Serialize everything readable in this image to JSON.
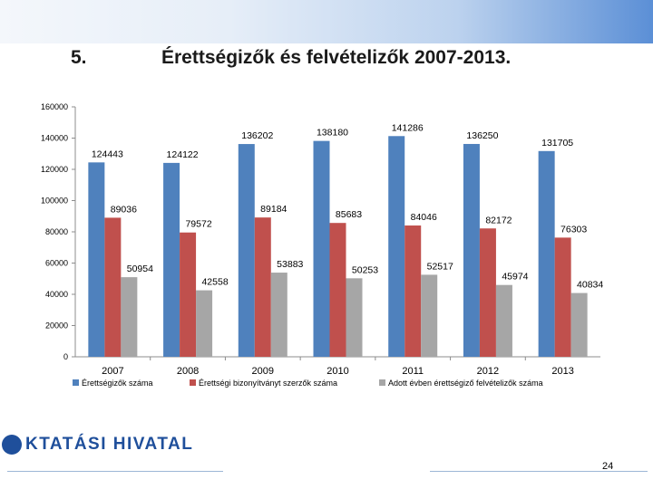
{
  "slide": {
    "number": "5.",
    "title": "Érettségizők és felvételizők 2007-2013.",
    "logo_text": "KTATÁSI HIVATAL",
    "page_number": "24"
  },
  "colors": {
    "series_blue": "#4f81bd",
    "series_red": "#c0504d",
    "series_gray": "#a6a6a6"
  },
  "chart_data": {
    "type": "bar",
    "title": "",
    "xlabel": "",
    "ylabel": "",
    "ylim": [
      0,
      160000
    ],
    "yticks": [
      0,
      20000,
      40000,
      60000,
      80000,
      100000,
      120000,
      140000,
      160000
    ],
    "categories": [
      "2007",
      "2008",
      "2009",
      "2010",
      "2011",
      "2012",
      "2013"
    ],
    "legend_position": "bottom",
    "series": [
      {
        "name": "Érettségizők száma",
        "color": "#4f81bd",
        "values": [
          124443,
          124122,
          136202,
          138180,
          141286,
          136250,
          131705
        ]
      },
      {
        "name": "Érettségi bizonyítványt szerzők száma",
        "color": "#c0504d",
        "values": [
          89036,
          79572,
          89184,
          85683,
          84046,
          82172,
          76303
        ]
      },
      {
        "name": "Adott évben érettségiző felvételizők száma",
        "color": "#a6a6a6",
        "values": [
          50954,
          42558,
          53883,
          50253,
          52517,
          45974,
          40834
        ]
      }
    ]
  }
}
